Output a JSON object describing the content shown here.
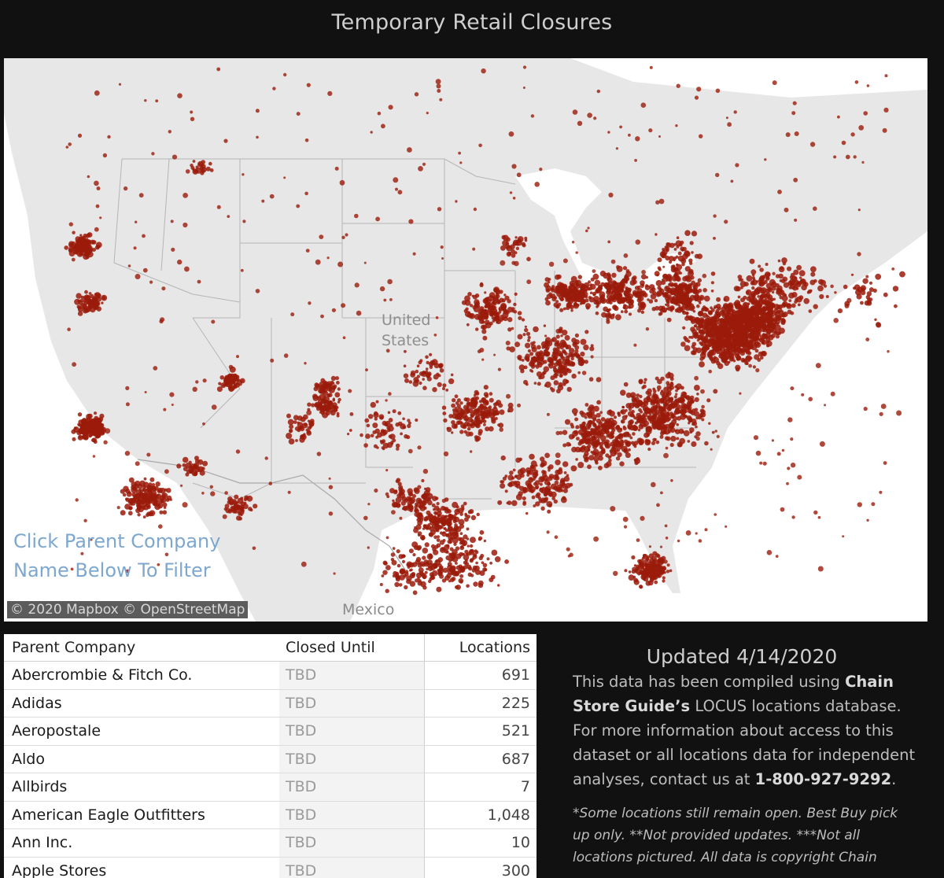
{
  "title": "Temporary Retail Closures",
  "map": {
    "hint_line1": "Click Parent Company",
    "hint_line2": "Name Below To Filter",
    "attribution": "© 2020 Mapbox  © OpenStreetMap",
    "country_line1": "United",
    "country_line2": "States",
    "mexico_label": "Mexico",
    "dot_color": "#9b1b0b",
    "land_color": "#e7e7e7",
    "water_color": "#ffffff"
  },
  "table": {
    "headers": [
      "Parent Company",
      "Closed Until",
      "Locations"
    ],
    "rows": [
      {
        "company": "Abercrombie & Fitch Co.",
        "closed_until": "TBD",
        "locations": "691"
      },
      {
        "company": "Adidas",
        "closed_until": "TBD",
        "locations": "225"
      },
      {
        "company": "Aeropostale",
        "closed_until": "TBD",
        "locations": "521"
      },
      {
        "company": "Aldo",
        "closed_until": "TBD",
        "locations": "687"
      },
      {
        "company": "Allbirds",
        "closed_until": "TBD",
        "locations": "7"
      },
      {
        "company": "American Eagle Outfitters",
        "closed_until": "TBD",
        "locations": "1,048"
      },
      {
        "company": "Ann Inc.",
        "closed_until": "TBD",
        "locations": "10"
      },
      {
        "company": "Apple Stores",
        "closed_until": "TBD",
        "locations": "300"
      }
    ]
  },
  "info": {
    "updated": "Updated 4/14/2020",
    "text_pre": "This data has been compiled using ",
    "text_bold1": "Chain Store Guide’s",
    "text_mid": " LOCUS locations database. For more information about access to this dataset or all locations data for independent analyses, contact us at ",
    "text_bold2": "1-800-927-9292",
    "text_post": ".",
    "note": "*Some locations still remain open. Best Buy pick up only. **Not provided updates. ***Not all locations pictured. All data is copyright Chain"
  }
}
